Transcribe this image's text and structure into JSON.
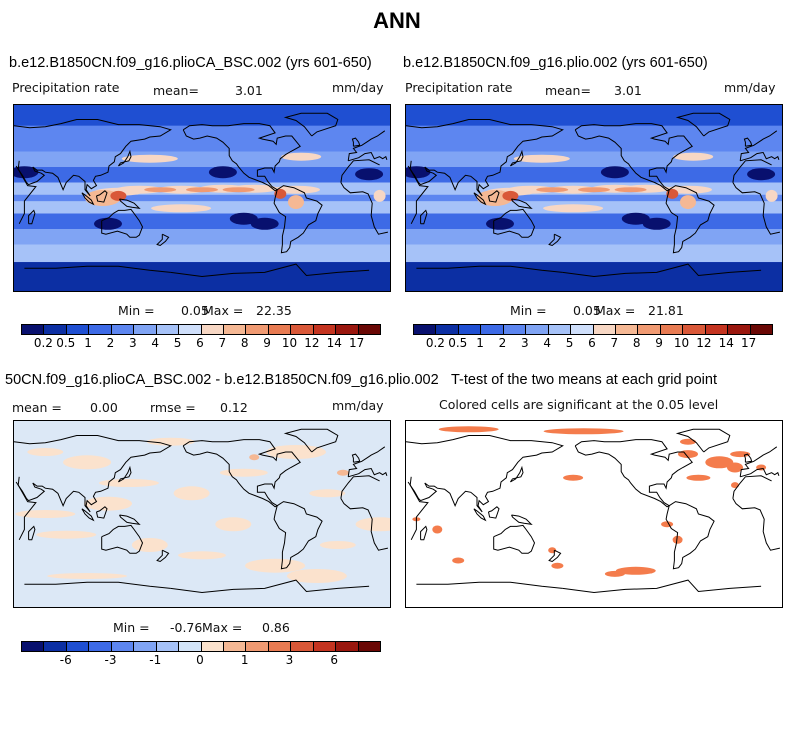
{
  "figure_title": "ANN",
  "colors": {
    "precip": [
      "#08106e",
      "#0c2fa3",
      "#1f4fd2",
      "#3d6ae6",
      "#5d86f0",
      "#80a4f4",
      "#a6c2f8",
      "#cfdffb",
      "#f7d7c4",
      "#f5b894",
      "#f09a72",
      "#e87b52",
      "#d95838",
      "#c43420",
      "#9a170e",
      "#6a0805"
    ],
    "diff": [
      "#08106e",
      "#0c2fa3",
      "#1f4fd2",
      "#3d6ae6",
      "#5d86f0",
      "#80a4f4",
      "#a6c2f8",
      "#d3e4f8",
      "#fbe2cd",
      "#f5b894",
      "#f09a72",
      "#e87b52",
      "#d95838",
      "#c43420",
      "#9a170e",
      "#6a0805"
    ],
    "significant": "#f47c4c",
    "ocean_bg": "#3560e0",
    "diff_bg": "#dce8f6"
  },
  "chart_data": [
    {
      "type": "heatmap",
      "title": "b.e12.B1850CN.f09_g16.plioCA_BSC.002 (yrs 601-650)",
      "left_label": "Precipitation rate",
      "mean_label": "mean=",
      "mean_value": "3.01",
      "units": "mm/day",
      "min_label": "Min =",
      "min_value": "0.05",
      "max_label": "Max =",
      "max_value": "22.35",
      "colorbar_ticks": [
        "0.2",
        "0.5",
        "1",
        "2",
        "3",
        "4",
        "5",
        "6",
        "7",
        "8",
        "9",
        "10",
        "12",
        "14",
        "17"
      ]
    },
    {
      "type": "heatmap",
      "title": "b.e12.B1850CN.f09_g16.plio.002 (yrs 601-650)",
      "left_label": "Precipitation rate",
      "mean_label": "mean=",
      "mean_value": "3.01",
      "units": "mm/day",
      "min_label": "Min =",
      "min_value": "0.05",
      "max_label": "Max =",
      "max_value": "21.81",
      "colorbar_ticks": [
        "0.2",
        "0.5",
        "1",
        "2",
        "3",
        "4",
        "5",
        "6",
        "7",
        "8",
        "9",
        "10",
        "12",
        "14",
        "17"
      ]
    },
    {
      "type": "heatmap",
      "title": "50CN.f09_g16.plioCA_BSC.002 - b.e12.B1850CN.f09_g16.plio.002",
      "mean_label": "mean =",
      "mean_value": "0.00",
      "rmse_label": "rmse =",
      "rmse_value": "0.12",
      "units": "mm/day",
      "min_label": "Min =",
      "min_value": "-0.76",
      "max_label": "Max =",
      "max_value": "0.86",
      "colorbar_ticks": [
        "-6",
        "-3",
        "-1",
        "0",
        "1",
        "3",
        "6"
      ]
    },
    {
      "type": "heatmap",
      "title": "T-test of the two means at each grid point",
      "subtitle": "Colored cells are significant at the 0.05 level"
    }
  ]
}
